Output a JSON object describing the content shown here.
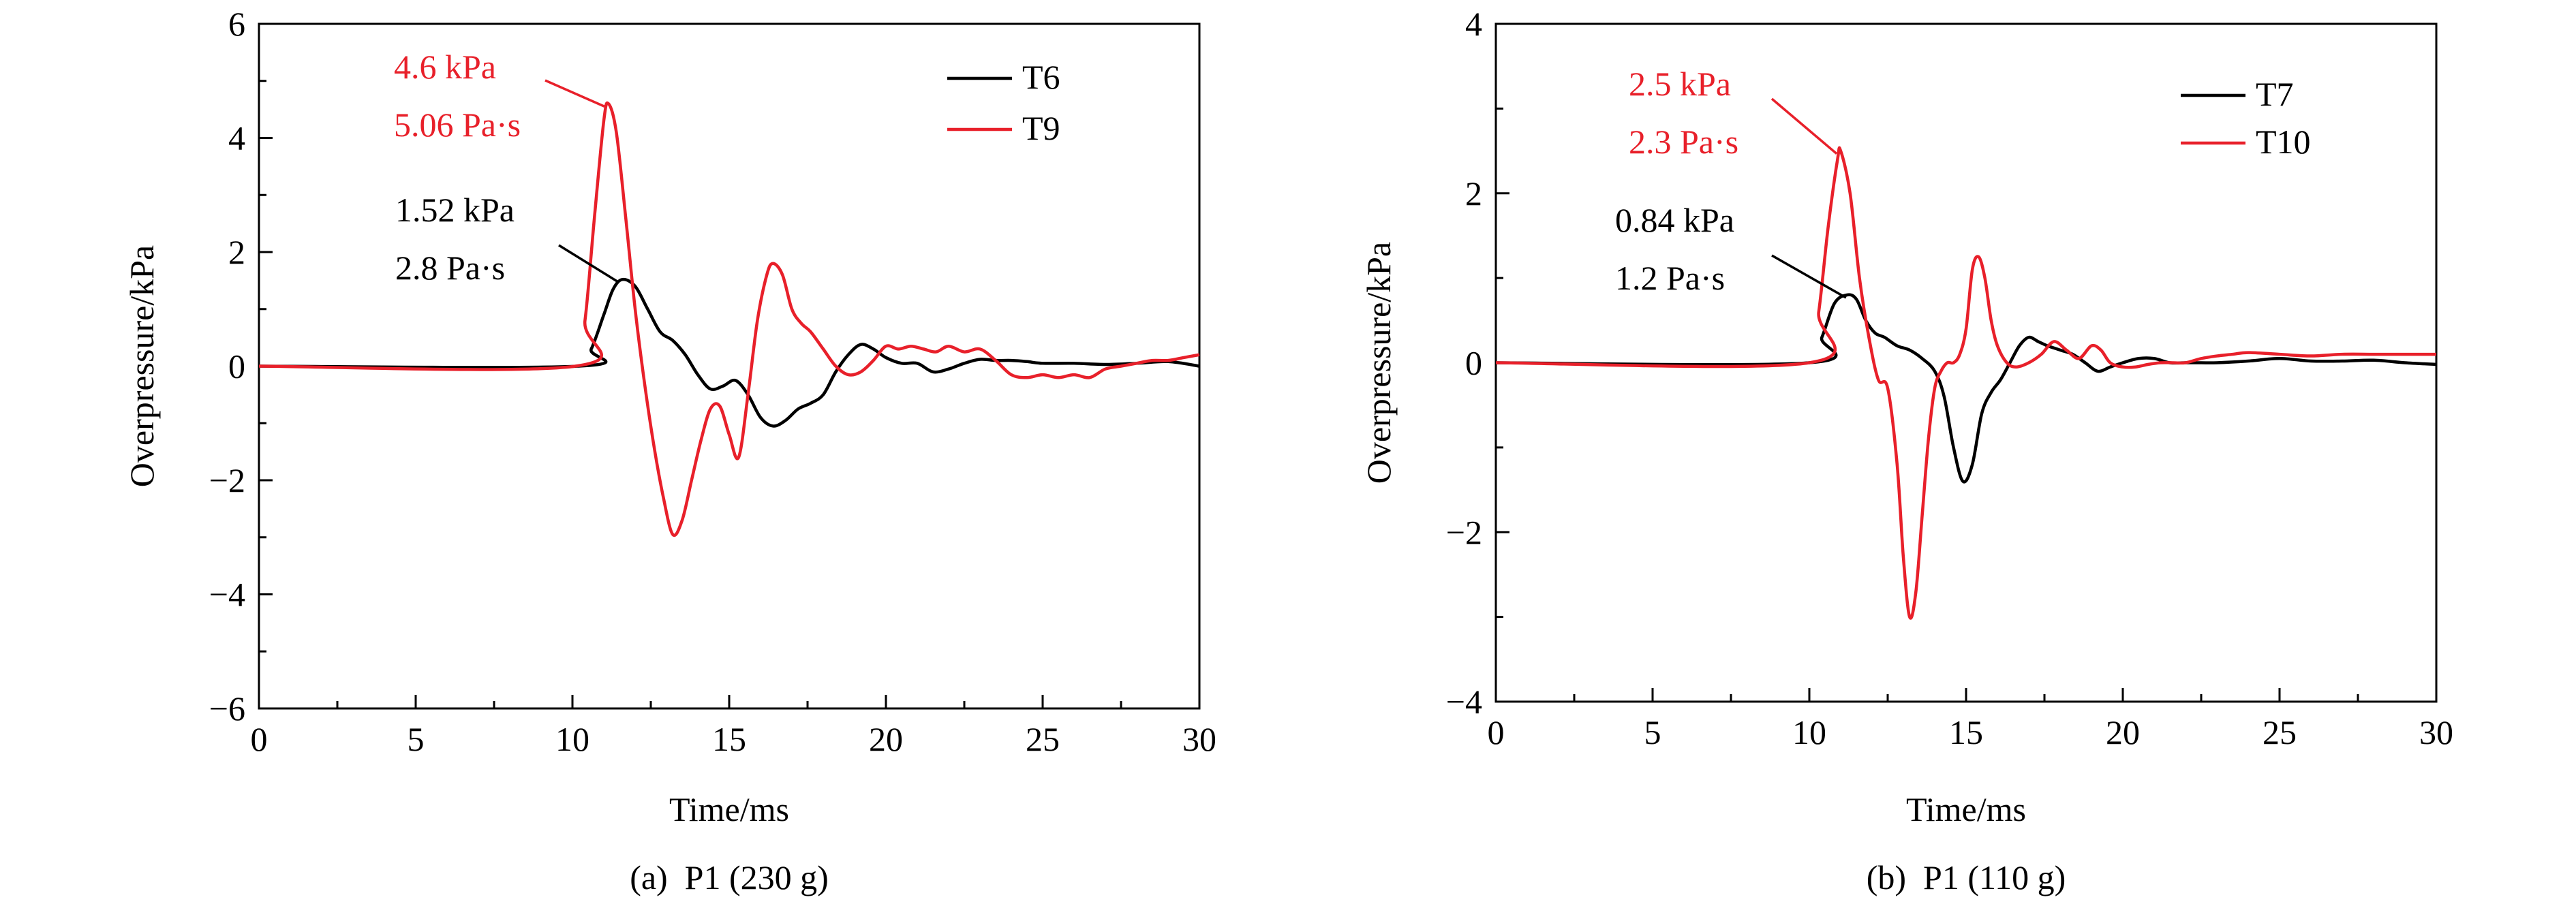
{
  "chart_data": [
    {
      "type": "line",
      "xlabel": "Time/ms",
      "ylabel": "Overpressure/kPa",
      "caption": "(a)  P1 (230 g)",
      "xlim": [
        0,
        30
      ],
      "ylim": [
        -6,
        6
      ],
      "xticks": [
        0,
        5,
        10,
        15,
        20,
        25,
        30
      ],
      "yticks": [
        -6,
        -4,
        -2,
        0,
        2,
        4,
        6
      ],
      "grid": false,
      "legend_position": "top-right",
      "series": [
        {
          "name": "T6",
          "color": "#000000",
          "x": [
            0,
            10.2,
            10.6,
            11.0,
            11.3,
            11.6,
            12.0,
            12.4,
            12.8,
            13.2,
            13.6,
            14.0,
            14.4,
            14.8,
            15.2,
            15.6,
            16.0,
            16.4,
            16.8,
            17.2,
            17.6,
            18.0,
            18.4,
            18.8,
            19.2,
            19.6,
            20.0,
            20.5,
            21.0,
            21.5,
            22.0,
            22.5,
            23.0,
            23.5,
            24.0,
            24.5,
            25.0,
            26.0,
            27.0,
            28.0,
            29.0,
            30.0
          ],
          "y": [
            0,
            0.0,
            0.3,
            0.9,
            1.35,
            1.52,
            1.4,
            1.0,
            0.6,
            0.45,
            0.2,
            -0.15,
            -0.4,
            -0.35,
            -0.25,
            -0.5,
            -0.9,
            -1.05,
            -0.95,
            -0.75,
            -0.65,
            -0.5,
            -0.1,
            0.2,
            0.38,
            0.3,
            0.15,
            0.05,
            0.05,
            -0.1,
            -0.05,
            0.05,
            0.12,
            0.1,
            0.1,
            0.08,
            0.05,
            0.05,
            0.03,
            0.05,
            0.08,
            0.0
          ]
        },
        {
          "name": "T9",
          "color": "#e8202a",
          "x": [
            0,
            10.1,
            10.4,
            10.7,
            11.0,
            11.15,
            11.4,
            11.7,
            12.0,
            12.3,
            12.6,
            12.9,
            13.2,
            13.5,
            13.8,
            14.1,
            14.4,
            14.7,
            15.0,
            15.3,
            15.6,
            15.9,
            16.2,
            16.4,
            16.7,
            17.0,
            17.3,
            17.6,
            18.0,
            18.4,
            18.8,
            19.2,
            19.6,
            20.0,
            20.4,
            20.8,
            21.2,
            21.6,
            22.0,
            22.5,
            23.0,
            23.5,
            24.0,
            24.5,
            25.0,
            25.5,
            26.0,
            26.5,
            27.0,
            27.5,
            28.0,
            28.5,
            29.0,
            29.5,
            30.0
          ],
          "y": [
            0,
            0.0,
            0.8,
            2.6,
            4.3,
            4.6,
            4.1,
            2.6,
            1.0,
            -0.3,
            -1.4,
            -2.3,
            -2.95,
            -2.7,
            -2.0,
            -1.3,
            -0.75,
            -0.7,
            -1.2,
            -1.6,
            -0.5,
            0.8,
            1.6,
            1.8,
            1.6,
            1.0,
            0.75,
            0.6,
            0.3,
            0.0,
            -0.15,
            -0.1,
            0.1,
            0.35,
            0.3,
            0.35,
            0.3,
            0.25,
            0.35,
            0.25,
            0.3,
            0.1,
            -0.15,
            -0.2,
            -0.15,
            -0.2,
            -0.15,
            -0.2,
            -0.05,
            0.0,
            0.05,
            0.1,
            0.1,
            0.15,
            0.2
          ]
        }
      ],
      "annotations": [
        {
          "line1": "4.6 kPa",
          "line2": "5.06 Pa·s",
          "color": "#e8202a",
          "target": [
            11.15,
            4.6
          ]
        },
        {
          "line1": "1.52 kPa",
          "line2": "2.8 Pa·s",
          "color": "#000000",
          "target": [
            11.6,
            1.52
          ]
        }
      ]
    },
    {
      "type": "line",
      "xlabel": "Time/ms",
      "ylabel": "Overpressure/kPa",
      "caption": "(b)  P1 (110 g)",
      "xlim": [
        0,
        30
      ],
      "ylim": [
        -4,
        4
      ],
      "xticks": [
        0,
        5,
        10,
        15,
        20,
        25,
        30
      ],
      "yticks": [
        -4,
        -2,
        0,
        2,
        4
      ],
      "grid": false,
      "legend_position": "top-right",
      "series": [
        {
          "name": "T7",
          "color": "#000000",
          "x": [
            0,
            10.0,
            10.4,
            10.8,
            11.2,
            11.5,
            11.8,
            12.1,
            12.4,
            12.8,
            13.2,
            13.6,
            14.0,
            14.3,
            14.6,
            14.9,
            15.2,
            15.5,
            15.8,
            16.1,
            16.4,
            16.7,
            17.0,
            17.3,
            17.6,
            18.0,
            18.4,
            18.8,
            19.2,
            19.6,
            20.0,
            20.5,
            21.0,
            21.5,
            22.0,
            22.5,
            23.0,
            24.0,
            25.0,
            26.0,
            27.0,
            28.0,
            29.0,
            30.0
          ],
          "y": [
            0,
            0.0,
            0.3,
            0.7,
            0.8,
            0.75,
            0.5,
            0.35,
            0.3,
            0.2,
            0.15,
            0.05,
            -0.1,
            -0.4,
            -1.0,
            -1.4,
            -1.2,
            -0.6,
            -0.35,
            -0.2,
            0.0,
            0.2,
            0.3,
            0.25,
            0.2,
            0.15,
            0.1,
            0.0,
            -0.1,
            -0.05,
            0.0,
            0.05,
            0.05,
            0.0,
            0.0,
            0.0,
            0.0,
            0.02,
            0.05,
            0.02,
            0.02,
            0.03,
            0.0,
            -0.02
          ]
        },
        {
          "name": "T10",
          "color": "#e8202a",
          "x": [
            0,
            10.0,
            10.3,
            10.6,
            10.9,
            11.0,
            11.3,
            11.6,
            11.9,
            12.2,
            12.5,
            12.8,
            13.0,
            13.2,
            13.4,
            13.6,
            13.8,
            14.0,
            14.2,
            14.4,
            14.6,
            14.8,
            15.0,
            15.2,
            15.4,
            15.6,
            15.8,
            16.0,
            16.3,
            16.6,
            17.0,
            17.4,
            17.8,
            18.2,
            18.6,
            19.0,
            19.3,
            19.6,
            20.0,
            20.4,
            20.8,
            21.2,
            21.6,
            22.0,
            22.5,
            23.0,
            23.5,
            24.0,
            25.0,
            26.0,
            27.0,
            28.0,
            29.0,
            30.0
          ],
          "y": [
            0,
            0.0,
            0.6,
            1.6,
            2.4,
            2.5,
            2.0,
            1.0,
            0.3,
            -0.2,
            -0.3,
            -1.2,
            -2.3,
            -3.0,
            -2.7,
            -1.8,
            -0.9,
            -0.3,
            -0.1,
            0.0,
            0.0,
            0.1,
            0.4,
            1.1,
            1.25,
            1.0,
            0.5,
            0.2,
            0.0,
            -0.05,
            0.0,
            0.1,
            0.25,
            0.15,
            0.05,
            0.2,
            0.15,
            0.0,
            -0.05,
            -0.05,
            -0.02,
            0.0,
            0.0,
            0.0,
            0.05,
            0.08,
            0.1,
            0.12,
            0.1,
            0.08,
            0.1,
            0.1,
            0.1,
            0.1
          ]
        }
      ],
      "annotations": [
        {
          "line1": "2.5 kPa",
          "line2": "2.3 Pa·s",
          "color": "#e8202a",
          "target": [
            11.0,
            2.5
          ]
        },
        {
          "line1": "0.84 kPa",
          "line2": "1.2 Pa·s",
          "color": "#000000",
          "target": [
            11.3,
            0.8
          ]
        }
      ]
    }
  ]
}
